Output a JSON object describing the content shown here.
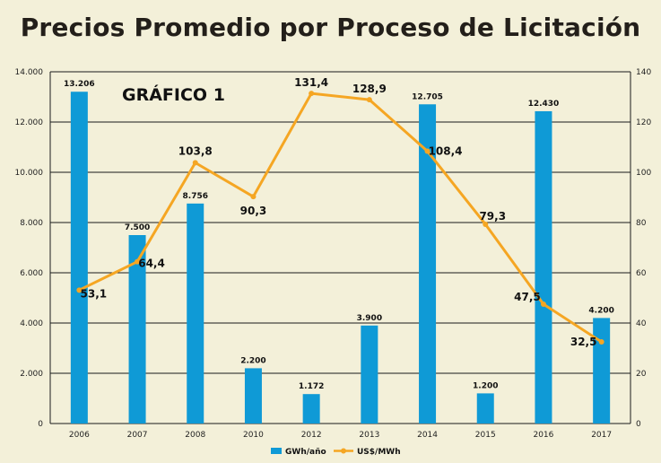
{
  "title": "Precios Promedio por Proceso de Licitación",
  "chart_data": {
    "type": "bar",
    "title": "Precios Promedio por Proceso de Licitación",
    "subtitle": "GRÁFICO 1",
    "categories": [
      "2006",
      "2007",
      "2008",
      "2010",
      "2012",
      "2013",
      "2014",
      "2015",
      "2016",
      "2017"
    ],
    "series": [
      {
        "name": "GWh/año",
        "type": "bar",
        "axis": "left",
        "color": "#0f9ad6",
        "values": [
          13206,
          7500,
          8756,
          2200,
          1172,
          3900,
          12705,
          1200,
          12430,
          4200
        ],
        "labels": [
          "13.206",
          "7.500",
          "8.756",
          "2.200",
          "1.172",
          "3.900",
          "12.705",
          "1.200",
          "12.430",
          "4.200"
        ]
      },
      {
        "name": "US$/MWh",
        "type": "line",
        "axis": "right",
        "color": "#f5a623",
        "values": [
          53.1,
          64.4,
          103.8,
          90.3,
          131.4,
          128.9,
          108.4,
          79.3,
          47.5,
          32.5
        ],
        "labels": [
          "53,1",
          "64,4",
          "103,8",
          "90,3",
          "131,4",
          "128,9",
          "108,4",
          "79,3",
          "47,5",
          "32,5"
        ]
      }
    ],
    "y_left": {
      "ylim": [
        0,
        14000
      ],
      "ticks": [
        0,
        2000,
        4000,
        6000,
        8000,
        10000,
        12000,
        14000
      ],
      "tick_labels": [
        "0",
        "2.000",
        "4.000",
        "6.000",
        "8.000",
        "10.000",
        "12.000",
        "14.000"
      ]
    },
    "y_right": {
      "ylim": [
        0,
        140
      ],
      "ticks": [
        0,
        20,
        40,
        60,
        80,
        100,
        120,
        140
      ],
      "tick_labels": [
        "0",
        "20",
        "40",
        "60",
        "80",
        "100",
        "120",
        "140"
      ]
    },
    "grid": true,
    "legend": "bottom-center",
    "highlight_label_color": "#f5a623",
    "highlight_label_index": 3
  }
}
